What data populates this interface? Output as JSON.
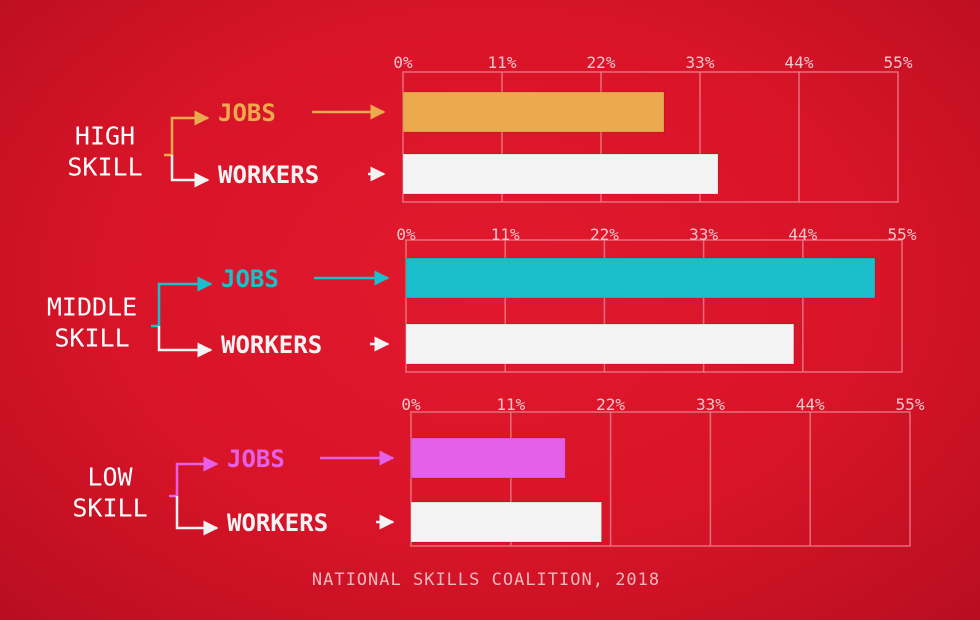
{
  "source": "NATIONAL SKILLS COALITION, 2018",
  "colors": {
    "jobs_high": "#eca94d",
    "jobs_middle": "#1bbfcb",
    "jobs_low": "#e460e6",
    "workers": "#f3f3f3",
    "label_white": "#ffffff",
    "grid": "#f08a95"
  },
  "chart_data": [
    {
      "type": "bar",
      "orientation": "horizontal",
      "group_label": [
        "HIGH",
        "SKILL"
      ],
      "categories": [
        "JOBS",
        "WORKERS"
      ],
      "values": [
        29,
        35
      ],
      "unit": "%",
      "xlim": [
        0,
        55
      ],
      "ticks": [
        "0%",
        "11%",
        "22%",
        "33%",
        "44%",
        "55%"
      ],
      "grid": true
    },
    {
      "type": "bar",
      "orientation": "horizontal",
      "group_label": [
        "MIDDLE",
        "SKILL"
      ],
      "categories": [
        "JOBS",
        "WORKERS"
      ],
      "values": [
        52,
        43
      ],
      "unit": "%",
      "xlim": [
        0,
        55
      ],
      "ticks": [
        "0%",
        "11%",
        "22%",
        "33%",
        "44%",
        "55%"
      ],
      "grid": true
    },
    {
      "type": "bar",
      "orientation": "horizontal",
      "group_label": [
        "LOW",
        "SKILL"
      ],
      "categories": [
        "JOBS",
        "WORKERS"
      ],
      "values": [
        17,
        21
      ],
      "unit": "%",
      "xlim": [
        0,
        55
      ],
      "ticks": [
        "0%",
        "11%",
        "22%",
        "33%",
        "44%",
        "55%"
      ],
      "grid": true
    }
  ]
}
